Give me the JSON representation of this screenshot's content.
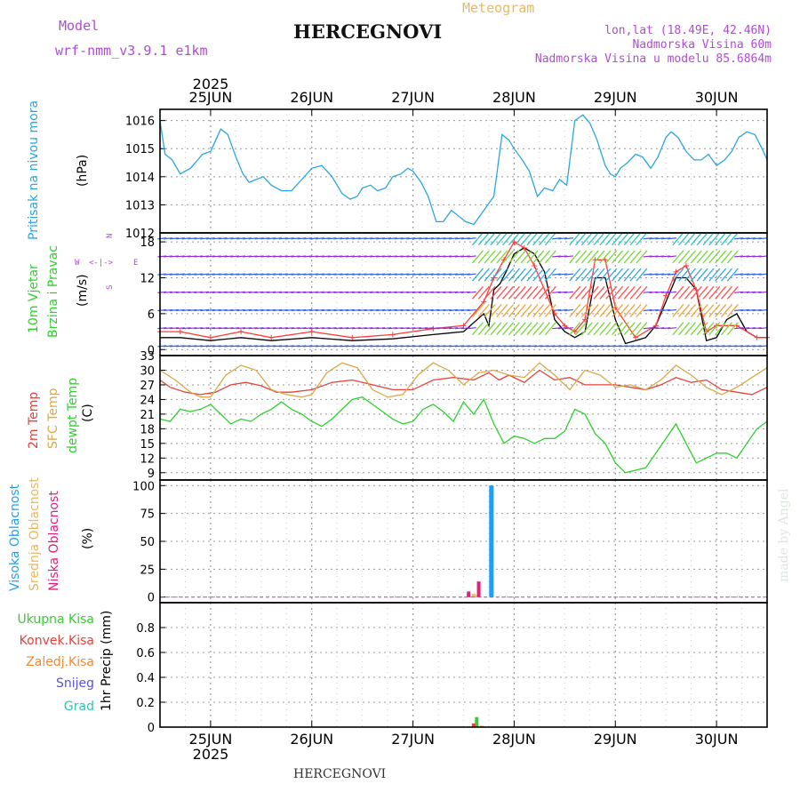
{
  "header": {
    "model_label": "Model",
    "model_name": "wrf-nmm_v3.9.1  e1km",
    "title": "HERCEGNOVI",
    "chart_kind": "Meteogram",
    "lonlat": "lon,lat (18.49E, 42.46N)",
    "altitude": "Nadmorska Visina 60m",
    "model_altitude": "Nadmorska Visina u modelu 85.6864m",
    "footer_title": "HERCEGNOVI",
    "watermark": "made by Angel"
  },
  "colors": {
    "pressure": "#29a6e0",
    "temp2m": "#e8403a",
    "sfc_temp": "#dba84a",
    "dewpoint": "#2ed12e",
    "wind_speed": "#000000",
    "wind_gust": "#ff3b3b",
    "high_cloud": "#22a0ee",
    "mid_cloud": "#e8c36a",
    "low_cloud": "#e0207a",
    "total_precip": "#3bc83b",
    "conv_precip": "#e8403a",
    "strat_precip": "#f08a3a",
    "snow": "#5555dd",
    "hail": "#33c2b0",
    "model_purple": "#b04bd8",
    "title_orange": "#e8b860"
  },
  "chart_data": [
    {
      "type": "line",
      "title": "Pritisak na nivou mora",
      "ylabel": "(hPa)",
      "ylim": [
        1012,
        1016.4
      ],
      "yticks": [
        "1012",
        "1013",
        "1014",
        "1015",
        "1016"
      ],
      "x_ticks_top": [
        "25JUN",
        "26JUN",
        "27JUN",
        "28JUN",
        "29JUN",
        "30JUN"
      ],
      "year_top": "2025",
      "x_unit": "days from 25JUN 00h",
      "xlim": [
        -0.5,
        5.5
      ],
      "series": [
        {
          "x": [
            -0.5,
            -0.45,
            -0.38,
            -0.3,
            -0.25,
            -0.2,
            -0.15,
            -0.08,
            0.0,
            0.05,
            0.1,
            0.17,
            0.25,
            0.32,
            0.38,
            0.45,
            0.52,
            0.6,
            0.7,
            0.8,
            0.9,
            1.0,
            1.1,
            1.2,
            1.3,
            1.38,
            1.45,
            1.5,
            1.58,
            1.65,
            1.73,
            1.8,
            1.88,
            1.95,
            2.0,
            2.08,
            2.15,
            2.23,
            2.3,
            2.38,
            2.45,
            2.52,
            2.6,
            2.7,
            2.8,
            2.88,
            2.95,
            3.0,
            3.08,
            3.15,
            3.23,
            3.3,
            3.38,
            3.45,
            3.52,
            3.6,
            3.68,
            3.75,
            3.82,
            3.9,
            3.95,
            4.0,
            4.05,
            4.12,
            4.2,
            4.27,
            4.35,
            4.42,
            4.5,
            4.55,
            4.62,
            4.7,
            4.78,
            4.85,
            4.92,
            5.0,
            5.08,
            5.15,
            5.22,
            5.3,
            5.38,
            5.45,
            5.5
          ],
          "y": [
            1016.0,
            1014.8,
            1014.6,
            1014.1,
            1014.2,
            1014.3,
            1014.5,
            1014.8,
            1014.9,
            1015.3,
            1015.7,
            1015.5,
            1014.7,
            1014.1,
            1013.8,
            1013.9,
            1014.0,
            1013.7,
            1013.5,
            1013.5,
            1013.9,
            1014.3,
            1014.4,
            1014.0,
            1013.4,
            1013.2,
            1013.3,
            1013.6,
            1013.7,
            1013.5,
            1013.6,
            1014.0,
            1014.1,
            1014.3,
            1014.2,
            1013.8,
            1013.3,
            1012.4,
            1012.4,
            1012.8,
            1012.6,
            1012.4,
            1012.3,
            1012.8,
            1013.3,
            1015.5,
            1015.3,
            1015.0,
            1014.6,
            1014.2,
            1013.3,
            1013.6,
            1013.5,
            1013.9,
            1013.7,
            1016.0,
            1016.2,
            1015.9,
            1015.3,
            1014.4,
            1014.1,
            1014.0,
            1014.3,
            1014.5,
            1014.8,
            1014.7,
            1014.3,
            1014.7,
            1015.4,
            1015.6,
            1015.4,
            1014.9,
            1014.6,
            1014.6,
            1014.8,
            1014.4,
            1014.6,
            1014.9,
            1015.4,
            1015.6,
            1015.5,
            1015.0,
            1014.6
          ],
          "color": "#29a6e0"
        }
      ],
      "grid": true
    },
    {
      "type": "line",
      "title": "10m Vjetar Brzina i Pravac",
      "ylabel": "(m/s)",
      "ylim": [
        -1,
        19.5
      ],
      "yticks": [
        "0",
        "6",
        "12",
        "18"
      ],
      "compass": [
        "N",
        "E",
        "S",
        "W"
      ],
      "series": [
        {
          "name": "speed",
          "x": [
            -0.5,
            -0.3,
            0.0,
            0.3,
            0.6,
            1.0,
            1.4,
            1.8,
            2.2,
            2.5,
            2.7,
            2.75,
            2.8,
            2.86,
            2.92,
            3.0,
            3.1,
            3.2,
            3.3,
            3.4,
            3.5,
            3.6,
            3.7,
            3.8,
            3.9,
            4.0,
            4.1,
            4.2,
            4.3,
            4.4,
            4.5,
            4.6,
            4.7,
            4.8,
            4.9,
            5.0,
            5.1,
            5.2,
            5.3,
            5.4,
            5.5
          ],
          "y": [
            2,
            2,
            1.5,
            2,
            1.5,
            2,
            1.5,
            1.8,
            2.5,
            3,
            6,
            4,
            10,
            11,
            13,
            16,
            17,
            16,
            13,
            5,
            3,
            2,
            3,
            12,
            12,
            5,
            1,
            1.5,
            2,
            4,
            8,
            12,
            12,
            10,
            1.5,
            2,
            5,
            6,
            3,
            2,
            2
          ],
          "color": "#000000"
        },
        {
          "name": "gust",
          "x": [
            -0.5,
            -0.3,
            0.0,
            0.3,
            0.6,
            1.0,
            1.4,
            1.8,
            2.2,
            2.5,
            2.7,
            2.8,
            2.9,
            3.0,
            3.1,
            3.2,
            3.4,
            3.5,
            3.6,
            3.7,
            3.8,
            3.9,
            4.0,
            4.2,
            4.4,
            4.5,
            4.6,
            4.7,
            4.8,
            4.9,
            5.0,
            5.2,
            5.4,
            5.5
          ],
          "y": [
            3,
            3,
            2,
            3,
            2,
            3,
            2,
            2.5,
            3.5,
            4,
            8,
            12,
            15,
            18,
            17,
            14,
            6,
            4,
            3,
            5,
            15,
            15,
            7,
            2,
            4,
            9,
            13,
            14,
            10,
            3,
            4,
            4,
            2,
            2
          ],
          "color": "#ff3b3b"
        }
      ],
      "grid": true
    },
    {
      "type": "line",
      "ylabel": "(C)",
      "ylim": [
        7.5,
        33
      ],
      "yticks": [
        "9",
        "12",
        "15",
        "18",
        "21",
        "24",
        "27",
        "30",
        "33"
      ],
      "legend": [
        "2m Temp",
        "SFC Temp",
        "dewpt Temp"
      ],
      "series": [
        {
          "name": "2m Temp",
          "x": [
            -0.5,
            -0.4,
            -0.25,
            -0.1,
            0.05,
            0.2,
            0.35,
            0.5,
            0.65,
            0.8,
            1.0,
            1.2,
            1.4,
            1.6,
            1.8,
            2.0,
            2.2,
            2.4,
            2.6,
            2.75,
            2.85,
            2.95,
            3.1,
            3.25,
            3.4,
            3.55,
            3.7,
            3.85,
            4.0,
            4.15,
            4.3,
            4.45,
            4.6,
            4.75,
            4.9,
            5.05,
            5.2,
            5.35,
            5.5
          ],
          "y": [
            28,
            26.5,
            25.5,
            25,
            25.5,
            27,
            27.5,
            26.8,
            25.5,
            25.5,
            26,
            27.5,
            28,
            27,
            26,
            26,
            28,
            28.5,
            28,
            29.5,
            28,
            29,
            27.5,
            30,
            28,
            28.5,
            27,
            27,
            27,
            26.5,
            26,
            27,
            28.5,
            27.5,
            28,
            26,
            25.5,
            25,
            26.5
          ],
          "color": "#e8403a"
        },
        {
          "name": "SFC Temp",
          "x": [
            -0.5,
            -0.35,
            -0.2,
            -0.1,
            0.0,
            0.15,
            0.3,
            0.45,
            0.6,
            0.75,
            0.9,
            1.0,
            1.15,
            1.3,
            1.45,
            1.6,
            1.75,
            1.9,
            2.05,
            2.2,
            2.35,
            2.5,
            2.65,
            2.8,
            2.95,
            3.1,
            3.25,
            3.4,
            3.55,
            3.7,
            3.85,
            4.0,
            4.15,
            4.3,
            4.45,
            4.6,
            4.75,
            4.9,
            5.05,
            5.2,
            5.35,
            5.5
          ],
          "y": [
            30,
            28,
            25.5,
            24.5,
            24.5,
            29,
            31,
            30,
            26,
            25,
            24.5,
            25,
            29.5,
            31.5,
            30.5,
            26,
            24.5,
            25,
            29,
            31.5,
            30,
            27,
            29.5,
            30,
            29,
            28.5,
            31.5,
            29,
            26,
            30,
            29,
            26.5,
            27,
            26,
            28,
            31,
            29,
            26.5,
            25,
            26.5,
            28.5,
            30.5
          ],
          "color": "#dba84a"
        },
        {
          "name": "dewpt Temp",
          "x": [
            -0.5,
            -0.4,
            -0.3,
            -0.2,
            -0.1,
            0.0,
            0.1,
            0.2,
            0.3,
            0.4,
            0.5,
            0.6,
            0.7,
            0.8,
            0.9,
            1.0,
            1.1,
            1.2,
            1.3,
            1.4,
            1.5,
            1.6,
            1.7,
            1.8,
            1.9,
            2.0,
            2.1,
            2.2,
            2.3,
            2.4,
            2.5,
            2.6,
            2.7,
            2.8,
            2.9,
            3.0,
            3.1,
            3.2,
            3.3,
            3.4,
            3.5,
            3.6,
            3.7,
            3.8,
            3.9,
            4.0,
            4.1,
            4.2,
            4.3,
            4.4,
            4.5,
            4.6,
            4.7,
            4.8,
            4.9,
            5.0,
            5.1,
            5.2,
            5.3,
            5.4,
            5.5
          ],
          "y": [
            20,
            19.5,
            22,
            21.5,
            22,
            23,
            21,
            19,
            20,
            19.5,
            21,
            22,
            23.5,
            22,
            21,
            19.5,
            18.5,
            20,
            22,
            24,
            24.5,
            23,
            21.5,
            20,
            19,
            19.5,
            22,
            23,
            21.5,
            19.5,
            23.5,
            21,
            24,
            19,
            15,
            16.5,
            16,
            15,
            16,
            16,
            17.5,
            22,
            21,
            17,
            15,
            11,
            9,
            9.5,
            10,
            13,
            16,
            19,
            15,
            11,
            12,
            13,
            13,
            12,
            15,
            18,
            19.5
          ],
          "color": "#2ed12e"
        }
      ],
      "grid": true
    },
    {
      "type": "bar",
      "ylabel": "(%)",
      "ylim": [
        -5,
        105
      ],
      "yticks": [
        "0",
        "25",
        "50",
        "75",
        "100"
      ],
      "legend": [
        "Visoka Oblacnost",
        "Srednja Oblacnost",
        "Niska Oblacnost"
      ],
      "series": [
        {
          "name": "Visoka Oblacnost",
          "x": [
            2.77,
            2.78
          ],
          "values": [
            100,
            100
          ],
          "color": "#22a0ee"
        },
        {
          "name": "Srednja Oblacnost",
          "x": [
            2.6,
            2.63
          ],
          "values": [
            3,
            2
          ],
          "color": "#e8c36a"
        },
        {
          "name": "Niska Oblacnost",
          "x": [
            2.55,
            2.65
          ],
          "values": [
            5,
            14
          ],
          "color": "#e0207a"
        }
      ],
      "grid": true
    },
    {
      "type": "bar",
      "ylabel": "1hr Precip (mm)",
      "ylim": [
        0,
        1.0
      ],
      "yticks": [
        "0",
        "0.2",
        "0.4",
        "0.6",
        "0.8"
      ],
      "legend": [
        "Ukupna Kisa",
        "Konvek.Kisa",
        "Zaledj.Kisa",
        "Snijeg",
        "Grad"
      ],
      "series": [
        {
          "name": "Ukupna Kisa",
          "x": [
            2.63
          ],
          "values": [
            0.08
          ],
          "color": "#3bc83b"
        },
        {
          "name": "Konvek.Kisa",
          "x": [
            2.6
          ],
          "values": [
            0.03
          ],
          "color": "#e8403a"
        },
        {
          "name": "Zaledj.Kisa",
          "x": [
            2.68
          ],
          "values": [
            0.01
          ],
          "color": "#f08a3a"
        }
      ],
      "x_ticks_bottom": [
        "25JUN",
        "26JUN",
        "27JUN",
        "28JUN",
        "29JUN",
        "30JUN"
      ],
      "year_bottom": "2025",
      "grid": true
    }
  ]
}
